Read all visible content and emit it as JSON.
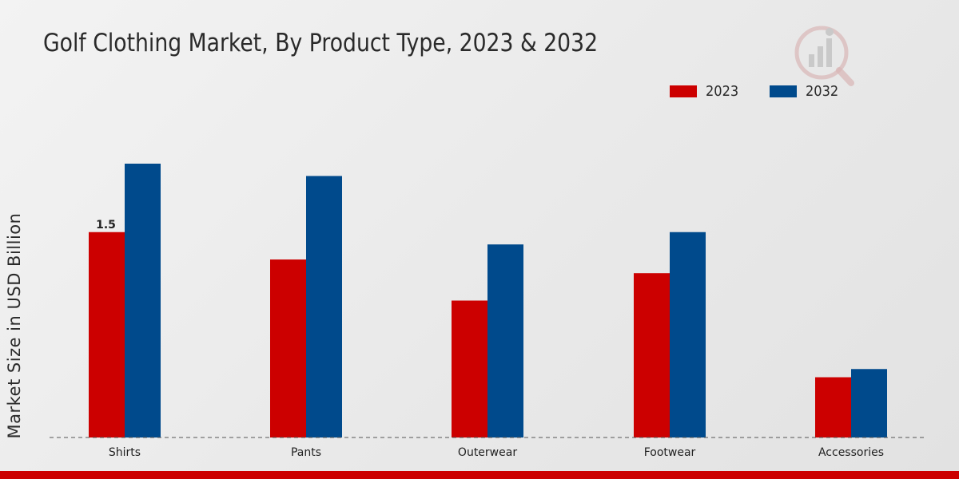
{
  "header": {
    "title": "Golf Clothing Market, By Product Type, 2023 & 2032"
  },
  "colors": {
    "series_2023": "#cc0000",
    "series_2032": "#004a8c",
    "footer": "#cc0000"
  },
  "logo": {
    "icon": "brand-logo-icon"
  },
  "chart_data": {
    "type": "bar",
    "title": "Golf Clothing Market, By Product Type, 2023 & 2032",
    "xlabel": "",
    "ylabel": "Market Size in USD Billion",
    "categories": [
      "Shirts",
      "Pants",
      "Outerwear",
      "Footwear",
      "Accessories"
    ],
    "series": [
      {
        "name": "2023",
        "color": "#cc0000",
        "values": [
          1.5,
          1.3,
          1.0,
          1.2,
          0.44
        ]
      },
      {
        "name": "2032",
        "color": "#004a8c",
        "values": [
          2.0,
          1.91,
          1.41,
          1.5,
          0.5
        ]
      }
    ],
    "data_labels": [
      {
        "category": "Shirts",
        "series": "2023",
        "text": "1.5"
      }
    ],
    "ylim": [
      0,
      4.0
    ],
    "grid": false,
    "legend_position": "top-right"
  }
}
